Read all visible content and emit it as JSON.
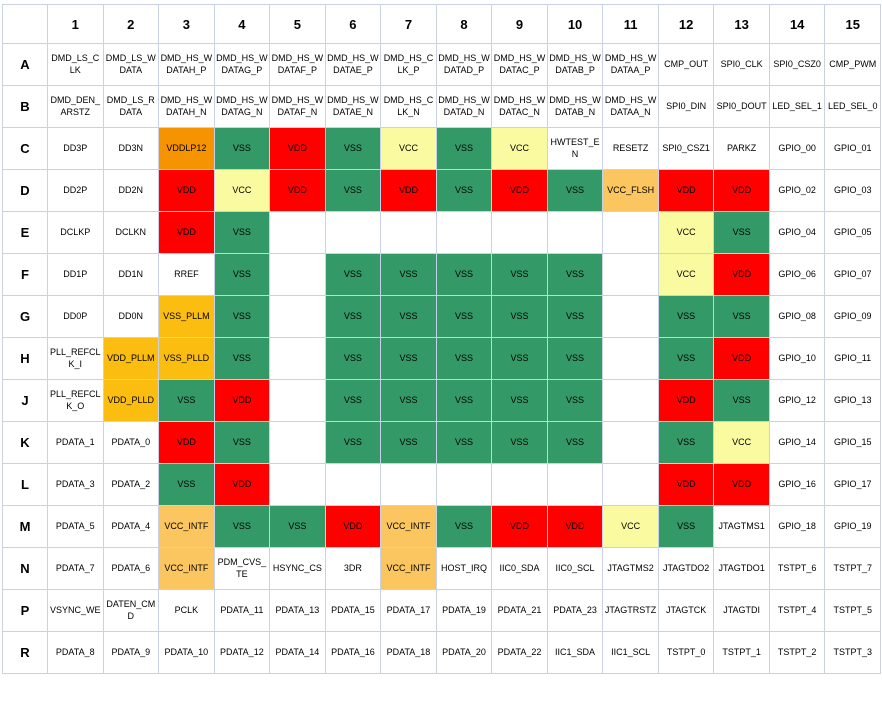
{
  "colors": {
    "green": "#339966",
    "red": "#fe0000",
    "yellow": "#fafaa0",
    "orange": "#f59300",
    "gold": "#fcbd11",
    "amber": "#fbc55f",
    "white": "#ffffff",
    "grid_border": "#c9d1e7"
  },
  "legend_meaning": {
    "green": "VSS ground ball",
    "red": "VDD core power ball",
    "yellow": "VCC power ball",
    "orange": "VDDLP12 power ball",
    "gold": "PLL power/ground ball",
    "amber": "VCC_INTF / VCC_FLSH interface power ball"
  },
  "grid": {
    "corner_label": "",
    "col_headers": [
      "1",
      "2",
      "3",
      "4",
      "5",
      "6",
      "7",
      "8",
      "9",
      "10",
      "11",
      "12",
      "13",
      "14",
      "15"
    ],
    "rows": [
      {
        "label": "A",
        "cells": [
          [
            "DMD_LS_CLK"
          ],
          [
            "DMD_LS_WDATA"
          ],
          [
            "DMD_HS_WDATAH_P"
          ],
          [
            "DMD_HS_WDATAG_P"
          ],
          [
            "DMD_HS_WDATAF_P"
          ],
          [
            "DMD_HS_WDATAE_P"
          ],
          [
            "DMD_HS_CLK_P"
          ],
          [
            "DMD_HS_WDATAD_P"
          ],
          [
            "DMD_HS_WDATAC_P"
          ],
          [
            "DMD_HS_WDATAB_P"
          ],
          [
            "DMD_HS_WDATAA_P"
          ],
          [
            "CMP_OUT"
          ],
          [
            "SPI0_CLK"
          ],
          [
            "SPI0_CSZ0"
          ],
          [
            "CMP_PWM"
          ]
        ]
      },
      {
        "label": "B",
        "cells": [
          [
            "DMD_DEN_ARSTZ"
          ],
          [
            "DMD_LS_RDATA"
          ],
          [
            "DMD_HS_WDATAH_N"
          ],
          [
            "DMD_HS_WDATAG_N"
          ],
          [
            "DMD_HS_WDATAF_N"
          ],
          [
            "DMD_HS_WDATAE_N"
          ],
          [
            "DMD_HS_CLK_N"
          ],
          [
            "DMD_HS_WDATAD_N"
          ],
          [
            "DMD_HS_WDATAC_N"
          ],
          [
            "DMD_HS_WDATAB_N"
          ],
          [
            "DMD_HS_WDATAA_N"
          ],
          [
            "SPI0_DIN"
          ],
          [
            "SPI0_DOUT"
          ],
          [
            "LED_SEL_1"
          ],
          [
            "LED_SEL_0"
          ]
        ]
      },
      {
        "label": "C",
        "cells": [
          [
            "DD3P"
          ],
          [
            "DD3N"
          ],
          [
            "VDDLP12",
            "orange"
          ],
          [
            "VSS",
            "green"
          ],
          [
            "VDD",
            "red"
          ],
          [
            "VSS",
            "green"
          ],
          [
            "VCC",
            "yellow"
          ],
          [
            "VSS",
            "green"
          ],
          [
            "VCC",
            "yellow"
          ],
          [
            "HWTEST_EN"
          ],
          [
            "RESETZ"
          ],
          [
            "SPI0_CSZ1"
          ],
          [
            "PARKZ"
          ],
          [
            "GPIO_00"
          ],
          [
            "GPIO_01"
          ]
        ]
      },
      {
        "label": "D",
        "cells": [
          [
            "DD2P"
          ],
          [
            "DD2N"
          ],
          [
            "VDD",
            "red"
          ],
          [
            "VCC",
            "yellow"
          ],
          [
            "VDD",
            "red"
          ],
          [
            "VSS",
            "green"
          ],
          [
            "VDD",
            "red"
          ],
          [
            "VSS",
            "green"
          ],
          [
            "VDD",
            "red"
          ],
          [
            "VSS",
            "green"
          ],
          [
            "VCC_FLSH",
            "amber"
          ],
          [
            "VDD",
            "red"
          ],
          [
            "VDD",
            "red"
          ],
          [
            "GPIO_02"
          ],
          [
            "GPIO_03"
          ]
        ]
      },
      {
        "label": "E",
        "cells": [
          [
            "DCLKP"
          ],
          [
            "DCLKN"
          ],
          [
            "VDD",
            "red"
          ],
          [
            "VSS",
            "green"
          ],
          [
            ""
          ],
          [
            ""
          ],
          [
            ""
          ],
          [
            ""
          ],
          [
            ""
          ],
          [
            ""
          ],
          [
            ""
          ],
          [
            "VCC",
            "yellow"
          ],
          [
            "VSS",
            "green"
          ],
          [
            "GPIO_04"
          ],
          [
            "GPIO_05"
          ]
        ]
      },
      {
        "label": "F",
        "cells": [
          [
            "DD1P"
          ],
          [
            "DD1N"
          ],
          [
            "RREF"
          ],
          [
            "VSS",
            "green"
          ],
          [
            ""
          ],
          [
            "VSS",
            "green"
          ],
          [
            "VSS",
            "green"
          ],
          [
            "VSS",
            "green"
          ],
          [
            "VSS",
            "green"
          ],
          [
            "VSS",
            "green"
          ],
          [
            ""
          ],
          [
            "VCC",
            "yellow"
          ],
          [
            "VDD",
            "red"
          ],
          [
            "GPIO_06"
          ],
          [
            "GPIO_07"
          ]
        ]
      },
      {
        "label": "G",
        "cells": [
          [
            "DD0P"
          ],
          [
            "DD0N"
          ],
          [
            "VSS_PLLM",
            "gold"
          ],
          [
            "VSS",
            "green"
          ],
          [
            ""
          ],
          [
            "VSS",
            "green"
          ],
          [
            "VSS",
            "green"
          ],
          [
            "VSS",
            "green"
          ],
          [
            "VSS",
            "green"
          ],
          [
            "VSS",
            "green"
          ],
          [
            ""
          ],
          [
            "VSS",
            "green"
          ],
          [
            "VSS",
            "green"
          ],
          [
            "GPIO_08"
          ],
          [
            "GPIO_09"
          ]
        ]
      },
      {
        "label": "H",
        "cells": [
          [
            "PLL_REFCLK_I"
          ],
          [
            "VDD_PLLM",
            "gold"
          ],
          [
            "VSS_PLLD",
            "gold"
          ],
          [
            "VSS",
            "green"
          ],
          [
            ""
          ],
          [
            "VSS",
            "green"
          ],
          [
            "VSS",
            "green"
          ],
          [
            "VSS",
            "green"
          ],
          [
            "VSS",
            "green"
          ],
          [
            "VSS",
            "green"
          ],
          [
            ""
          ],
          [
            "VSS",
            "green"
          ],
          [
            "VDD",
            "red"
          ],
          [
            "GPIO_10"
          ],
          [
            "GPIO_11"
          ]
        ]
      },
      {
        "label": "J",
        "cells": [
          [
            "PLL_REFCLK_O"
          ],
          [
            "VDD_PLLD",
            "gold"
          ],
          [
            "VSS",
            "green"
          ],
          [
            "VDD",
            "red"
          ],
          [
            ""
          ],
          [
            "VSS",
            "green"
          ],
          [
            "VSS",
            "green"
          ],
          [
            "VSS",
            "green"
          ],
          [
            "VSS",
            "green"
          ],
          [
            "VSS",
            "green"
          ],
          [
            ""
          ],
          [
            "VDD",
            "red"
          ],
          [
            "VSS",
            "green"
          ],
          [
            "GPIO_12"
          ],
          [
            "GPIO_13"
          ]
        ]
      },
      {
        "label": "K",
        "cells": [
          [
            "PDATA_1"
          ],
          [
            "PDATA_0"
          ],
          [
            "VDD",
            "red"
          ],
          [
            "VSS",
            "green"
          ],
          [
            ""
          ],
          [
            "VSS",
            "green"
          ],
          [
            "VSS",
            "green"
          ],
          [
            "VSS",
            "green"
          ],
          [
            "VSS",
            "green"
          ],
          [
            "VSS",
            "green"
          ],
          [
            ""
          ],
          [
            "VSS",
            "green"
          ],
          [
            "VCC",
            "yellow"
          ],
          [
            "GPIO_14"
          ],
          [
            "GPIO_15"
          ]
        ]
      },
      {
        "label": "L",
        "cells": [
          [
            "PDATA_3"
          ],
          [
            "PDATA_2"
          ],
          [
            "VSS",
            "green"
          ],
          [
            "VDD",
            "red"
          ],
          [
            ""
          ],
          [
            ""
          ],
          [
            ""
          ],
          [
            ""
          ],
          [
            ""
          ],
          [
            ""
          ],
          [
            ""
          ],
          [
            "VDD",
            "red"
          ],
          [
            "VDD",
            "red"
          ],
          [
            "GPIO_16"
          ],
          [
            "GPIO_17"
          ]
        ]
      },
      {
        "label": "M",
        "cells": [
          [
            "PDATA_5"
          ],
          [
            "PDATA_4"
          ],
          [
            "VCC_INTF",
            "amber"
          ],
          [
            "VSS",
            "green"
          ],
          [
            "VSS",
            "green"
          ],
          [
            "VDD",
            "red"
          ],
          [
            "VCC_INTF",
            "amber"
          ],
          [
            "VSS",
            "green"
          ],
          [
            "VDD",
            "red"
          ],
          [
            "VDD",
            "red"
          ],
          [
            "VCC",
            "yellow"
          ],
          [
            "VSS",
            "green"
          ],
          [
            "JTAGTMS1"
          ],
          [
            "GPIO_18"
          ],
          [
            "GPIO_19"
          ]
        ]
      },
      {
        "label": "N",
        "cells": [
          [
            "PDATA_7"
          ],
          [
            "PDATA_6"
          ],
          [
            "VCC_INTF",
            "amber"
          ],
          [
            "PDM_CVS_TE"
          ],
          [
            "HSYNC_CS"
          ],
          [
            "3DR"
          ],
          [
            "VCC_INTF",
            "amber"
          ],
          [
            "HOST_IRQ"
          ],
          [
            "IIC0_SDA"
          ],
          [
            "IIC0_SCL"
          ],
          [
            "JTAGTMS2"
          ],
          [
            "JTAGTDO2"
          ],
          [
            "JTAGTDO1"
          ],
          [
            "TSTPT_6"
          ],
          [
            "TSTPT_7"
          ]
        ]
      },
      {
        "label": "P",
        "cells": [
          [
            "VSYNC_WE"
          ],
          [
            "DATEN_CMD"
          ],
          [
            "PCLK"
          ],
          [
            "PDATA_11"
          ],
          [
            "PDATA_13"
          ],
          [
            "PDATA_15"
          ],
          [
            "PDATA_17"
          ],
          [
            "PDATA_19"
          ],
          [
            "PDATA_21"
          ],
          [
            "PDATA_23"
          ],
          [
            "JTAGTRSTZ"
          ],
          [
            "JTAGTCK"
          ],
          [
            "JTAGTDI"
          ],
          [
            "TSTPT_4"
          ],
          [
            "TSTPT_5"
          ]
        ]
      },
      {
        "label": "R",
        "cells": [
          [
            "PDATA_8"
          ],
          [
            "PDATA_9"
          ],
          [
            "PDATA_10"
          ],
          [
            "PDATA_12"
          ],
          [
            "PDATA_14"
          ],
          [
            "PDATA_16"
          ],
          [
            "PDATA_18"
          ],
          [
            "PDATA_20"
          ],
          [
            "PDATA_22"
          ],
          [
            "IIC1_SDA"
          ],
          [
            "IIC1_SCL"
          ],
          [
            "TSTPT_0"
          ],
          [
            "TSTPT_1"
          ],
          [
            "TSTPT_2"
          ],
          [
            "TSTPT_3"
          ]
        ]
      }
    ]
  }
}
